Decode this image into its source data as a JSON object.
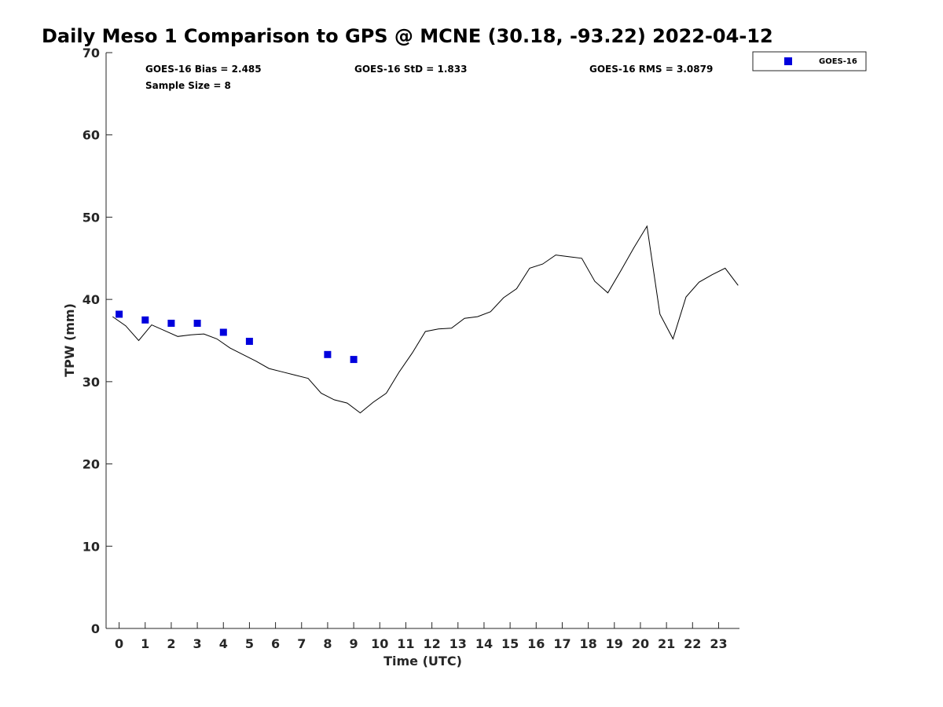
{
  "chart_data": {
    "type": "scatter",
    "title": "Daily Meso 1 Comparison to GPS @ MCNE (30.18, -93.22) 2022-04-12",
    "xlabel": "Time (UTC)",
    "ylabel": "TPW (mm)",
    "xlim": [
      -0.5,
      23.8
    ],
    "ylim": [
      0,
      70
    ],
    "x_ticks": [
      0,
      1,
      2,
      3,
      4,
      5,
      6,
      7,
      8,
      9,
      10,
      11,
      12,
      13,
      14,
      15,
      16,
      17,
      18,
      19,
      20,
      21,
      22,
      23
    ],
    "x_tick_labels": [
      "0",
      "1",
      "2",
      "3",
      "4",
      "5",
      "6",
      "7",
      "8",
      "9",
      "10",
      "11",
      "12",
      "13",
      "14",
      "15",
      "16",
      "17",
      "18",
      "19",
      "20",
      "21",
      "22",
      "23"
    ],
    "y_ticks": [
      0,
      10,
      20,
      30,
      40,
      50,
      60,
      70
    ],
    "y_tick_labels": [
      "0",
      "10",
      "20",
      "30",
      "40",
      "50",
      "60",
      "70"
    ],
    "grid": false,
    "legend": {
      "position": "outside-top-right",
      "entries": [
        "GOES-16"
      ]
    },
    "stats": {
      "bias": "GOES-16 Bias = 2.485",
      "std": "GOES-16 StD = 1.833",
      "rms": "GOES-16 RMS = 3.0879",
      "sample_size": "Sample Size = 8"
    },
    "series": [
      {
        "name": "GOES-16",
        "kind": "scatter",
        "marker": "square",
        "color": "#0000dd",
        "x": [
          0,
          1,
          2,
          3,
          4,
          5,
          8,
          9
        ],
        "y": [
          38.2,
          37.5,
          37.1,
          37.1,
          36.0,
          34.9,
          33.3,
          32.7
        ]
      },
      {
        "kind": "line",
        "color": "#000000",
        "x": [
          -0.25,
          0.25,
          0.75,
          1.25,
          1.75,
          2.25,
          2.75,
          3.25,
          3.75,
          4.25,
          4.75,
          5.25,
          5.75,
          6.25,
          6.75,
          7.25,
          7.75,
          8.25,
          8.75,
          9.25,
          9.75,
          10.25,
          10.75,
          11.25,
          11.75,
          12.25,
          12.75,
          13.25,
          13.75,
          14.25,
          14.75,
          15.25,
          15.75,
          16.25,
          16.75,
          17.25,
          17.75,
          18.25,
          18.75,
          19.25,
          19.75,
          20.25,
          20.75,
          21.25,
          21.75,
          22.25,
          22.75,
          23.25,
          23.75
        ],
        "y": [
          37.9,
          36.8,
          35.0,
          36.9,
          36.2,
          35.5,
          35.7,
          35.8,
          35.2,
          34.1,
          33.3,
          32.5,
          31.6,
          31.2,
          30.8,
          30.4,
          28.6,
          27.8,
          27.4,
          26.2,
          27.5,
          28.6,
          31.2,
          33.5,
          36.1,
          36.4,
          36.5,
          37.7,
          37.9,
          38.5,
          40.2,
          41.3,
          43.8,
          44.3,
          45.4,
          45.2,
          45.0,
          42.2,
          40.8,
          43.5,
          46.3,
          48.9,
          38.2,
          35.2,
          40.3,
          42.1,
          43.0,
          43.8,
          41.7
        ]
      }
    ]
  }
}
